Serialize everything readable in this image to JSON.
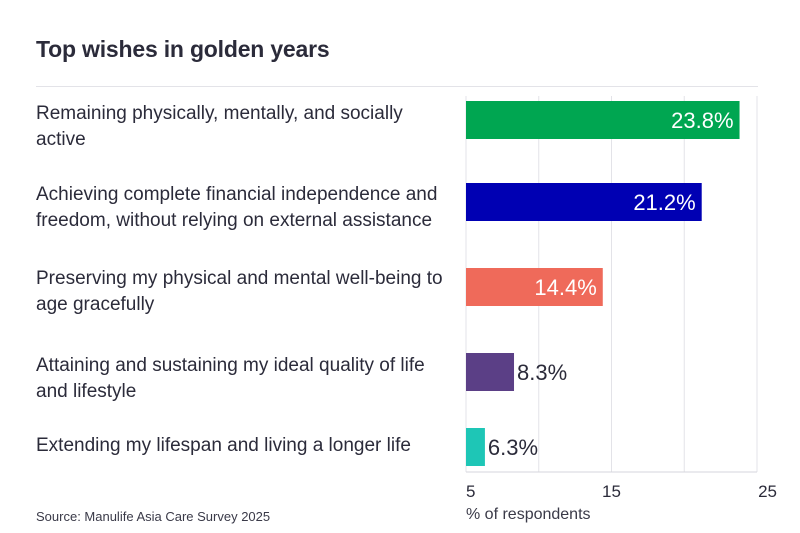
{
  "title": "Top wishes in golden years",
  "source": "Source: Manulife Asia Care Survey 2025",
  "chart_data": {
    "type": "bar",
    "orientation": "horizontal",
    "title": "Top wishes in golden years",
    "xlabel": "% of respondents",
    "ylabel": "",
    "xlim": [
      5,
      25
    ],
    "xticks": [
      5,
      15,
      25
    ],
    "grid": true,
    "categories": [
      "Remaining physically, mentally, and socially active",
      "Achieving complete financial independence and freedom, without relying on external assistance",
      "Preserving my physical and mental well-being to age gracefully",
      "Attaining and sustaining my ideal quality of life and lifestyle",
      "Extending my lifespan and living a longer life"
    ],
    "values": [
      23.8,
      21.2,
      14.4,
      8.3,
      6.3
    ],
    "value_labels": [
      "23.8%",
      "21.2%",
      "14.4%",
      "8.3%",
      "6.3%"
    ],
    "colors": [
      "#00a651",
      "#0000b3",
      "#ef6a5a",
      "#5b3f86",
      "#1ec6b6"
    ]
  }
}
